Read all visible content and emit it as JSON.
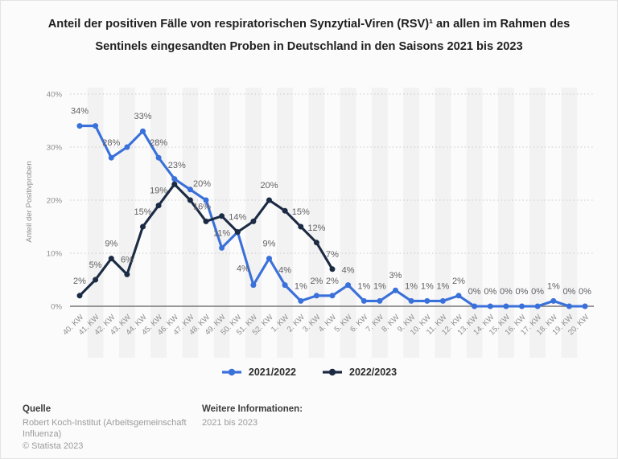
{
  "title": "Anteil der positiven Fälle von respiratorischen Synzytial-Viren (RSV)¹ an allen im Rahmen des Sentinels eingesandten Proben in Deutschland in den Saisons 2021 bis 2023",
  "chart_data": {
    "type": "line",
    "categories": [
      "40. KW",
      "41. KW",
      "42. KW",
      "43. KW",
      "44. KW",
      "45. KW",
      "46. KW",
      "47. KW",
      "48. KW",
      "49. KW",
      "50. KW",
      "51. KW",
      "52. KW",
      "1. KW",
      "2. KW",
      "3. KW",
      "4. KW",
      "5. KW",
      "6. KW",
      "7. KW",
      "8. KW",
      "9. KW",
      "10. KW",
      "11. KW",
      "12. KW",
      "13. KW",
      "14. KW",
      "15. KW",
      "16. KW",
      "17. KW",
      "18. KW",
      "19. KW",
      "20. KW"
    ],
    "ylabel": "Anteil der Positivproben",
    "yticks": [
      0,
      10,
      20,
      30,
      40
    ],
    "ytick_labels": [
      "0%",
      "10%",
      "20%",
      "30%",
      "40%"
    ],
    "ylim": [
      0,
      40
    ],
    "grid": "horizontal-dotted",
    "band_color": "#F2F2F2",
    "legend_position": "bottom",
    "series": [
      {
        "name": "2021/2022",
        "color": "#3A70D9",
        "values": [
          34,
          34,
          28,
          30,
          33,
          28,
          24,
          22,
          20,
          11,
          14,
          4,
          9,
          4,
          1,
          2,
          2,
          4,
          1,
          1,
          3,
          1,
          1,
          1,
          2,
          0,
          0,
          0,
          0,
          0,
          1,
          0,
          0
        ],
        "labels": [
          "34%",
          "",
          "28%",
          "",
          "33%",
          "28%",
          "",
          "",
          "20%",
          "11%",
          "",
          "4%",
          "9%",
          "4%",
          "1%",
          "2%",
          "2%",
          "4%",
          "1%",
          "1%",
          "3%",
          "1%",
          "1%",
          "1%",
          "2%",
          "0%",
          "0%",
          "0%",
          "0%",
          "0%",
          "1%",
          "0%",
          "0%"
        ]
      },
      {
        "name": "2022/2023",
        "color": "#1C2B44",
        "values": [
          2,
          5,
          9,
          6,
          15,
          19,
          23,
          20,
          16,
          17,
          14,
          16,
          20,
          18,
          15,
          12,
          7
        ],
        "labels": [
          "2%",
          "5%",
          "9%",
          "6%",
          "15%",
          "19%",
          "23%",
          "",
          "16%",
          "",
          "14%",
          "",
          "20%",
          "",
          "15%",
          "12%",
          "7%"
        ]
      }
    ],
    "label_offsets": {
      "0,8": [
        -5,
        -2
      ],
      "1,8": [
        -5,
        0
      ],
      "0,11": [
        -13,
        -2
      ],
      "1,6": [
        3,
        -5
      ]
    }
  },
  "legend": [
    {
      "label": "2021/2022",
      "color": "#3A70D9"
    },
    {
      "label": "2022/2023",
      "color": "#1C2B44"
    }
  ],
  "footer": {
    "source_heading": "Quelle",
    "source": "Robert Koch-Institut (Arbeitsgemeinschaft Influenza)",
    "copyright": "© Statista 2023",
    "info_heading": "Weitere Informationen:",
    "info": "2021 bis 2023"
  }
}
